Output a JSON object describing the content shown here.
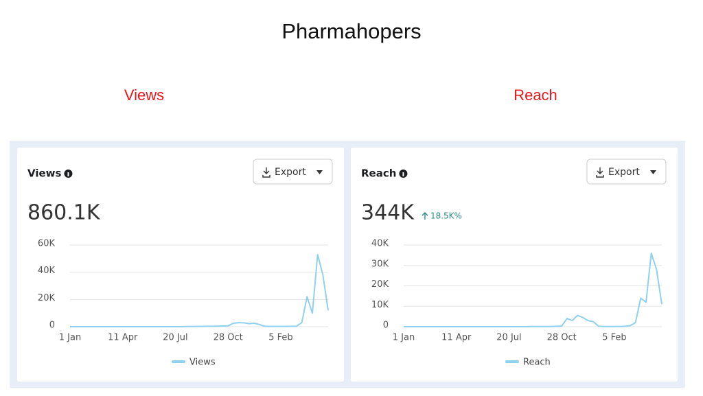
{
  "page_title": "Pharmahopers",
  "chart_data": [
    {
      "type": "line",
      "caption": "Views",
      "title": "Views",
      "button": "Export",
      "total": "860.1K",
      "categories": [
        "1 Jan",
        null,
        null,
        null,
        null,
        null,
        null,
        null,
        null,
        null,
        "11 Apr",
        null,
        null,
        null,
        null,
        null,
        null,
        null,
        null,
        null,
        "20 Jul",
        null,
        null,
        null,
        null,
        null,
        null,
        null,
        null,
        null,
        "28 Oct",
        null,
        null,
        null,
        null,
        null,
        null,
        null,
        null,
        null,
        "5 Feb",
        null,
        null,
        null,
        null,
        null,
        null,
        null,
        null,
        null
      ],
      "series": [
        {
          "name": "Views",
          "color": "#8ed1ef",
          "values": [
            0,
            0,
            0,
            0,
            0,
            0,
            0,
            0,
            0,
            0,
            0,
            0,
            0,
            0,
            0,
            0,
            0,
            0,
            0,
            0,
            0,
            0,
            100,
            100,
            200,
            200,
            300,
            300,
            400,
            500,
            600,
            2500,
            3000,
            2800,
            2200,
            2500,
            1500,
            300,
            200,
            200,
            200,
            200,
            300,
            400,
            3000,
            22000,
            10000,
            53000,
            38000,
            12000
          ]
        }
      ],
      "ylim": [
        0,
        60000
      ],
      "yticks": [
        0,
        {
          "value": 20000,
          "label": "20K"
        },
        {
          "value": 40000,
          "label": "40K"
        },
        {
          "value": 60000,
          "label": "60K"
        }
      ],
      "grid": true
    },
    {
      "type": "line",
      "caption": "Reach",
      "title": "Reach",
      "button": "Export",
      "total": "344K",
      "change": "18.5K%",
      "change_color": "#2a8c82",
      "categories": [
        "1 Jan",
        null,
        null,
        null,
        null,
        null,
        null,
        null,
        null,
        null,
        "11 Apr",
        null,
        null,
        null,
        null,
        null,
        null,
        null,
        null,
        null,
        "20 Jul",
        null,
        null,
        null,
        null,
        null,
        null,
        null,
        null,
        null,
        "28 Oct",
        null,
        null,
        null,
        null,
        null,
        null,
        null,
        null,
        null,
        "5 Feb",
        null,
        null,
        null,
        null,
        null,
        null,
        null,
        null,
        null
      ],
      "series": [
        {
          "name": "Reach",
          "color": "#8ed1ef",
          "values": [
            0,
            0,
            0,
            0,
            0,
            0,
            0,
            0,
            0,
            0,
            0,
            0,
            0,
            0,
            0,
            0,
            0,
            0,
            0,
            0,
            0,
            0,
            0,
            0,
            100,
            100,
            100,
            100,
            100,
            200,
            300,
            4000,
            3000,
            5500,
            4500,
            3000,
            2500,
            200,
            100,
            100,
            100,
            100,
            200,
            500,
            2000,
            14000,
            12000,
            36000,
            28000,
            11000
          ]
        }
      ],
      "ylim": [
        0,
        40000
      ],
      "yticks": [
        0,
        {
          "value": 10000,
          "label": "10K"
        },
        {
          "value": 20000,
          "label": "20K"
        },
        {
          "value": 30000,
          "label": "30K"
        },
        {
          "value": 40000,
          "label": "40K"
        }
      ],
      "grid": true
    }
  ]
}
